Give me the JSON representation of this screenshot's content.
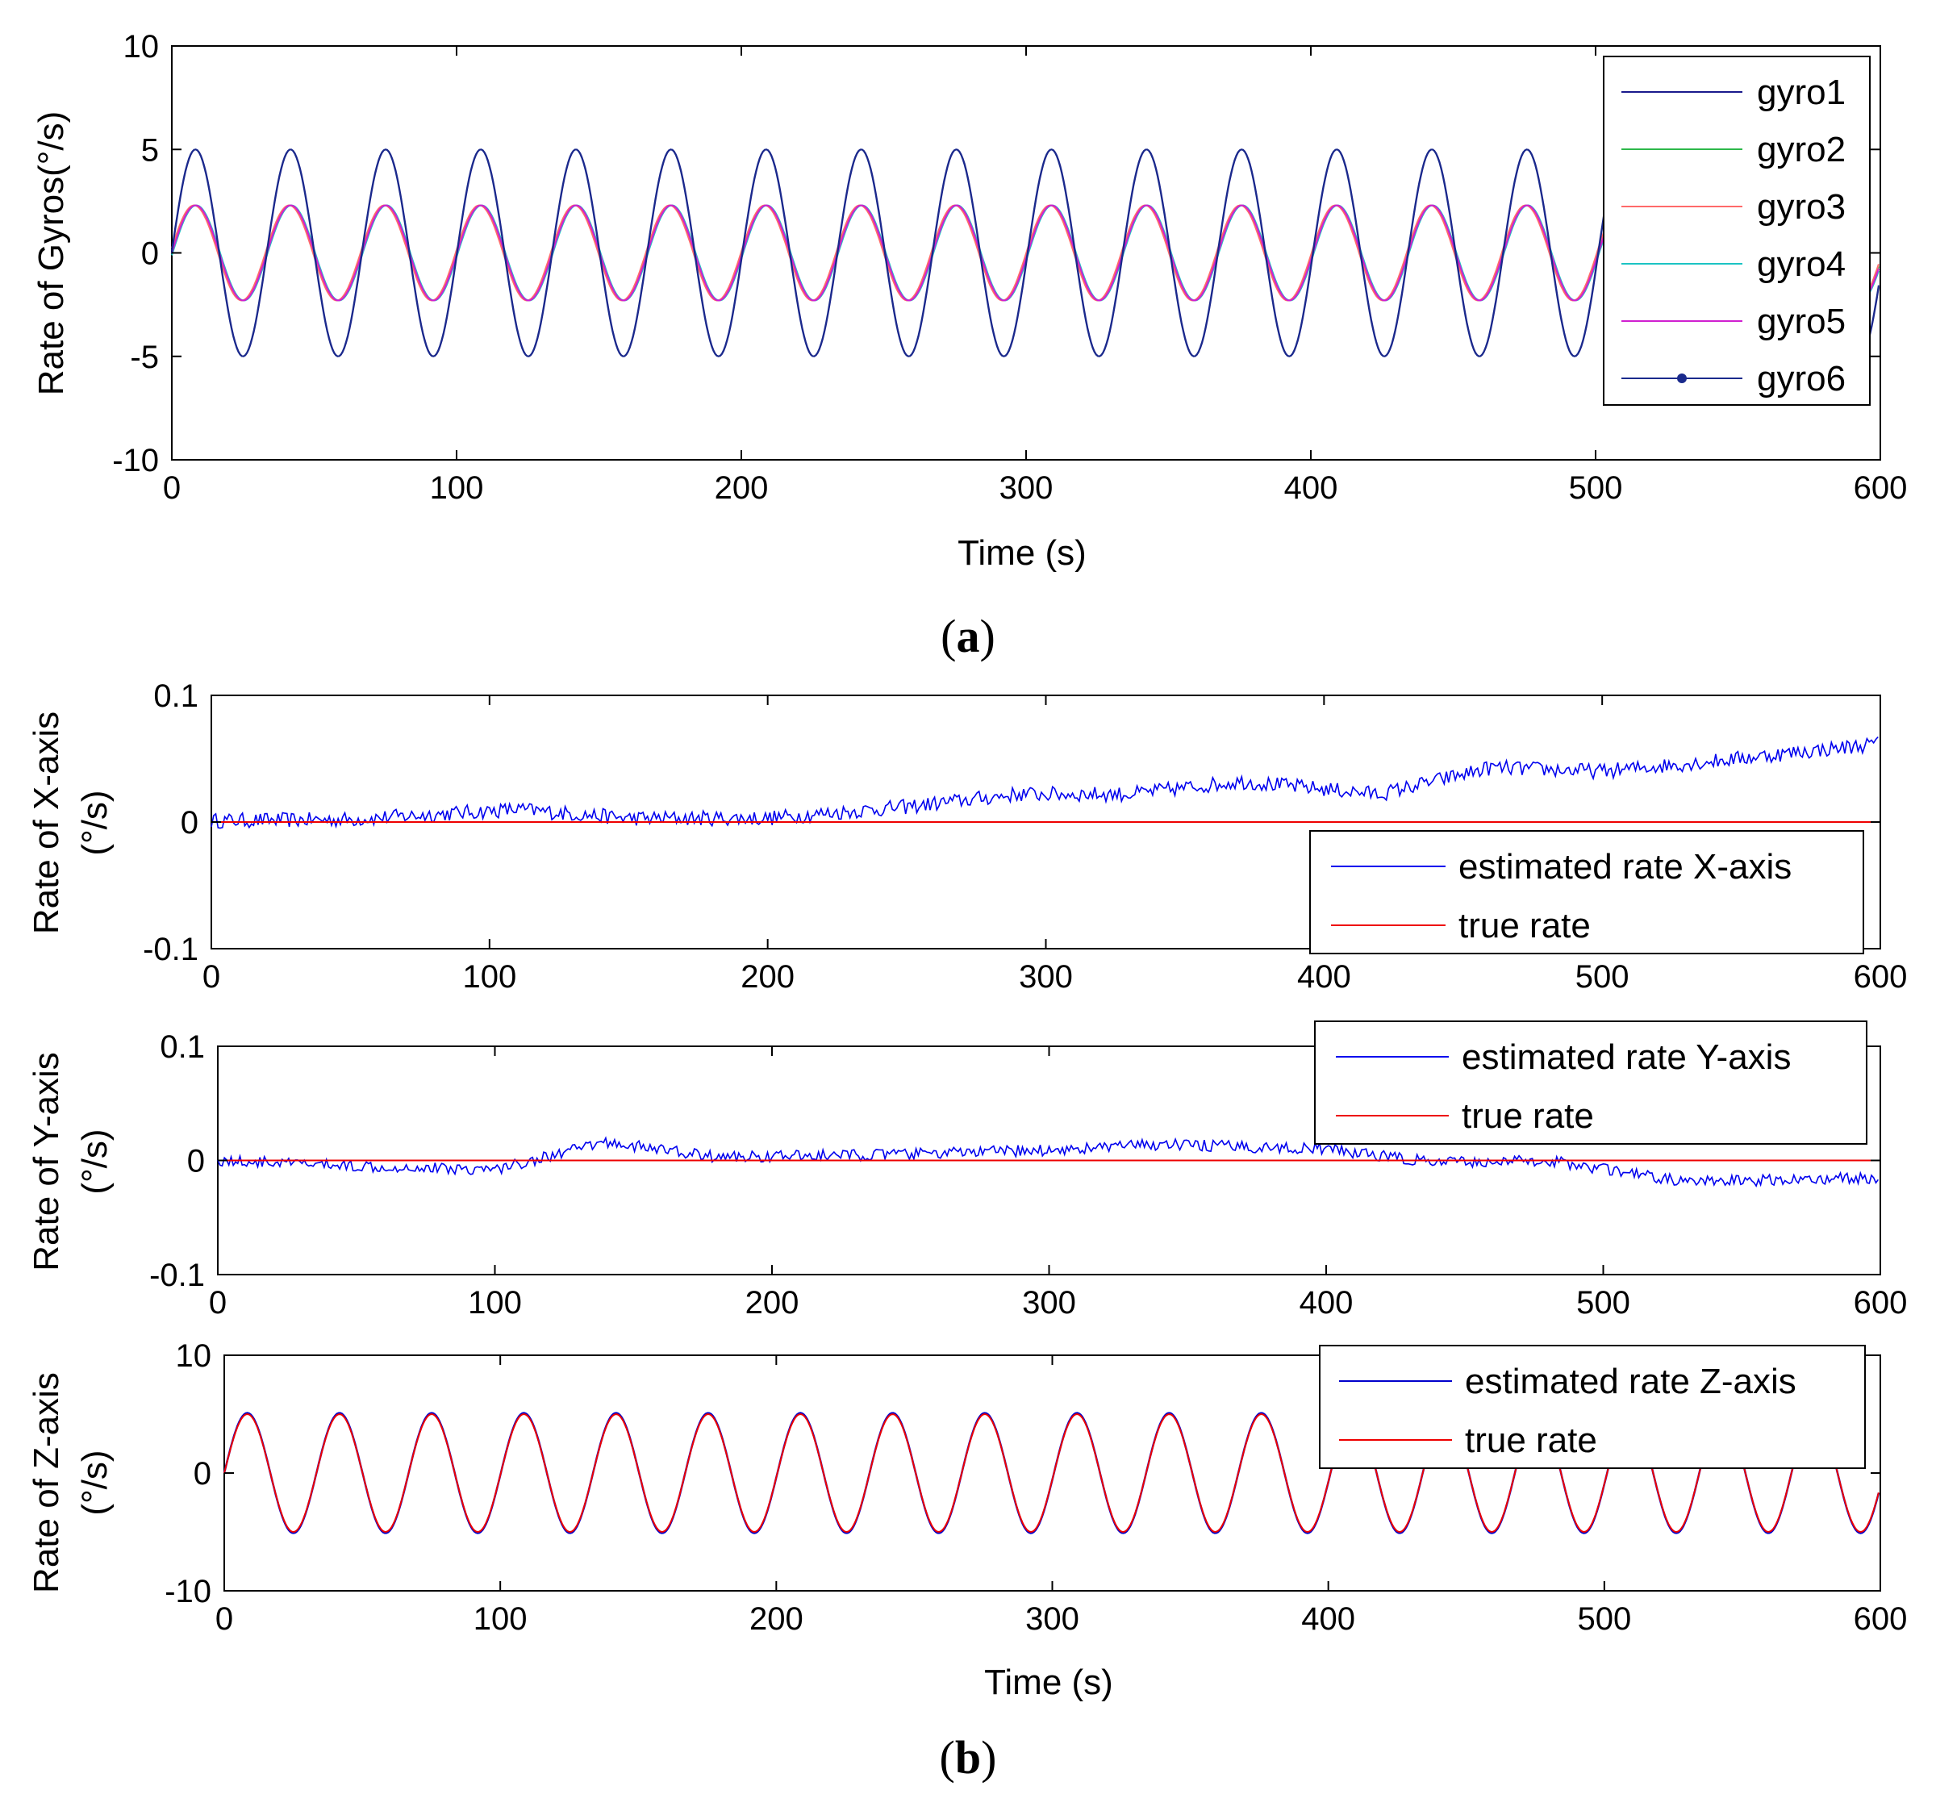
{
  "panel_labels": {
    "a": "a",
    "b": "b"
  },
  "chart_data": [
    {
      "id": "gyros",
      "type": "line",
      "ylabel": "Rate of Gyros(°/s)",
      "xlabel": "Time (s)",
      "xlim": [
        0,
        600
      ],
      "ylim": [
        -10,
        10
      ],
      "xticks": [
        "0",
        "100",
        "200",
        "300",
        "400",
        "500",
        "600"
      ],
      "yticks": [
        "10",
        "5",
        "0",
        "-5",
        "-10"
      ],
      "period": 33.4,
      "legend_position": "top-right",
      "series": [
        {
          "name": "gyro1",
          "color": "#1a1a8c",
          "amplitude": 5.0,
          "phase": 0.0,
          "marker": "none"
        },
        {
          "name": "gyro2",
          "color": "#2db84a",
          "amplitude": 2.3,
          "phase": 0.05,
          "marker": "none"
        },
        {
          "name": "gyro3",
          "color": "#ff6a6a",
          "amplitude": 2.3,
          "phase": 0.1,
          "marker": "none"
        },
        {
          "name": "gyro4",
          "color": "#1cc4c4",
          "amplitude": 2.3,
          "phase": -0.05,
          "marker": "none"
        },
        {
          "name": "gyro5",
          "color": "#d020d0",
          "amplitude": 2.3,
          "phase": 0.0,
          "marker": "none"
        },
        {
          "name": "gyro6",
          "color": "#1a2a8c",
          "amplitude": 5.0,
          "phase": 0.02,
          "marker": "dot"
        }
      ]
    },
    {
      "id": "xaxis",
      "type": "line",
      "ylabel_line1": "Rate of X-axis",
      "ylabel_line2": "(°/s)",
      "xlim": [
        0,
        600
      ],
      "ylim": [
        -0.1,
        0.1
      ],
      "xticks": [
        "0",
        "100",
        "200",
        "300",
        "400",
        "500",
        "600"
      ],
      "yticks": [
        "0.1",
        "0",
        "-0.1"
      ],
      "legend_position": "bottom-right",
      "series": [
        {
          "name": "estimated rate X-axis",
          "color": "#0000ee",
          "trend_x": [
            0,
            50,
            110,
            150,
            200,
            250,
            290,
            330,
            370,
            420,
            460,
            500,
            540,
            600
          ],
          "trend_y": [
            0.001,
            0.002,
            0.01,
            0.003,
            0.003,
            0.012,
            0.022,
            0.022,
            0.032,
            0.022,
            0.043,
            0.04,
            0.048,
            0.062
          ],
          "noise": 0.006
        },
        {
          "name": "true rate",
          "color": "#ee0000",
          "constant": 0
        }
      ]
    },
    {
      "id": "yaxis",
      "type": "line",
      "ylabel_line1": "Rate of Y-axis",
      "ylabel_line2": "(°/s)",
      "xlim": [
        0,
        600
      ],
      "ylim": [
        -0.1,
        0.1
      ],
      "xticks": [
        "0",
        "100",
        "200",
        "300",
        "400",
        "500",
        "600"
      ],
      "yticks": [
        "0.1",
        "0",
        "-0.1"
      ],
      "legend_position": "top-right",
      "series": [
        {
          "name": "estimated rate Y-axis",
          "color": "#0000ee",
          "trend_x": [
            0,
            40,
            100,
            140,
            180,
            240,
            300,
            340,
            400,
            440,
            480,
            530,
            600
          ],
          "trend_y": [
            0.0,
            -0.004,
            -0.008,
            0.016,
            0.003,
            0.005,
            0.009,
            0.014,
            0.01,
            -0.002,
            0.0,
            -0.019,
            -0.015
          ],
          "noise": 0.005
        },
        {
          "name": "true rate",
          "color": "#ee0000",
          "constant": 0
        }
      ]
    },
    {
      "id": "zaxis",
      "type": "line",
      "ylabel_line1": "Rate of Z-axis",
      "ylabel_line2": "(°/s)",
      "xlabel": "Time (s)",
      "xlim": [
        0,
        600
      ],
      "ylim": [
        -10,
        10
      ],
      "xticks": [
        "0",
        "100",
        "200",
        "300",
        "400",
        "500",
        "600"
      ],
      "yticks": [
        "10",
        "0",
        "-10"
      ],
      "period": 33.4,
      "legend_position": "top-right",
      "series": [
        {
          "name": "estimated rate Z-axis",
          "color": "#0000cc",
          "amplitude": 5.1
        },
        {
          "name": "true rate",
          "color": "#ee0000",
          "amplitude": 5.0
        }
      ]
    }
  ]
}
